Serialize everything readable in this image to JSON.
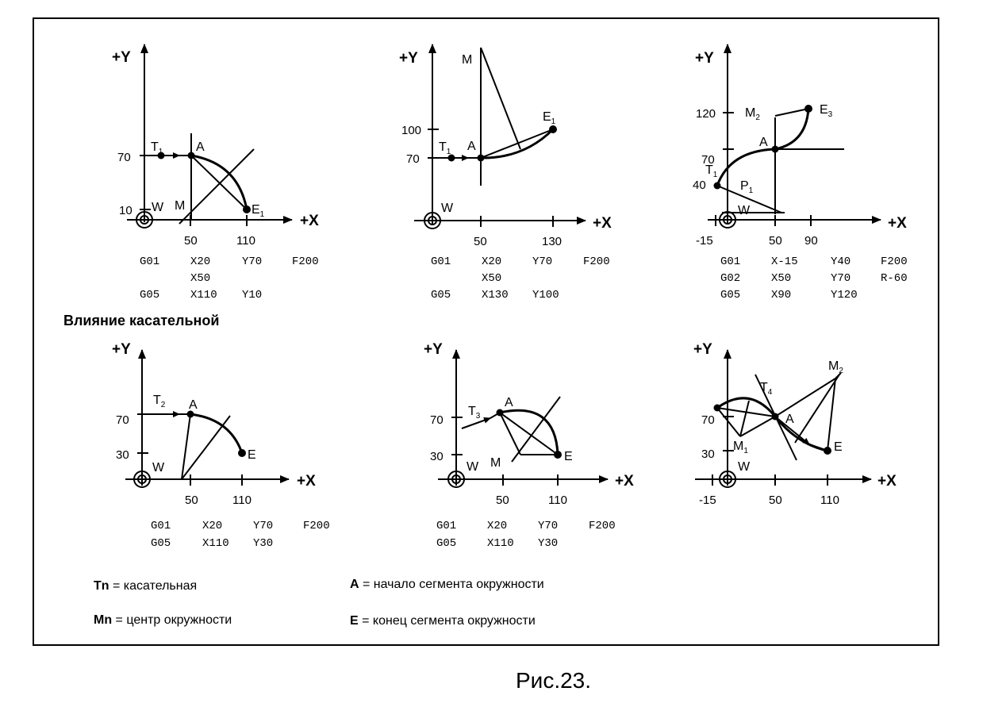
{
  "section_title": "Влияние касательной",
  "caption": "Рис.23.",
  "legend": [
    {
      "key": "Tn",
      "text": " = касательная"
    },
    {
      "key": "A",
      "text": " = начало сегмента окружности"
    },
    {
      "key": "Mn",
      "text": " = центр окружности"
    },
    {
      "key": "E",
      "text": " = конец сегмента окружности"
    }
  ],
  "axes": {
    "x": "+X",
    "y": "+Y",
    "origin": "W"
  },
  "panels": [
    {
      "id": "p1",
      "x_ticks": [
        "50",
        "110"
      ],
      "y_ticks": [
        "70",
        "10"
      ],
      "points": {
        "T": "T",
        "T_sub": "1",
        "A": "A",
        "M": "M",
        "E": "E",
        "E_sub": "1"
      },
      "code": [
        [
          "G01",
          "X20",
          "Y70",
          "F200"
        ],
        [
          "",
          "X50",
          "",
          ""
        ],
        [
          "G05",
          "X110",
          "Y10",
          ""
        ]
      ]
    },
    {
      "id": "p2",
      "x_ticks": [
        "50",
        "130"
      ],
      "y_ticks": [
        "100",
        "70"
      ],
      "points": {
        "T": "T",
        "T_sub": "1",
        "A": "A",
        "M": "M",
        "E": "E",
        "E_sub": "1"
      },
      "code": [
        [
          "G01",
          "X20",
          "Y70",
          "F200"
        ],
        [
          "",
          "X50",
          "",
          ""
        ],
        [
          "G05",
          "X130",
          "Y100",
          ""
        ]
      ]
    },
    {
      "id": "p3",
      "x_ticks": [
        "-15",
        "50",
        "90"
      ],
      "y_ticks": [
        "120",
        "70",
        "40"
      ],
      "points": {
        "T": "T",
        "T_sub": "1",
        "A": "A",
        "M": "M",
        "M_sub": "2",
        "E": "E",
        "E_sub": "3",
        "P": "P",
        "P_sub": "1"
      },
      "code": [
        [
          "G01",
          "X-15",
          "Y40",
          "F200"
        ],
        [
          "G02",
          "X50",
          "Y70",
          "R-60"
        ],
        [
          "G05",
          "X90",
          "Y120",
          ""
        ]
      ]
    },
    {
      "id": "p4",
      "x_ticks": [
        "50",
        "110"
      ],
      "y_ticks": [
        "70",
        "30"
      ],
      "points": {
        "T": "T",
        "T_sub": "2",
        "A": "A",
        "E": "E"
      },
      "code": [
        [
          "G01",
          "X20",
          "Y70",
          "F200"
        ],
        [
          "G05",
          "X110",
          "Y30",
          ""
        ]
      ]
    },
    {
      "id": "p5",
      "x_ticks": [
        "50",
        "110"
      ],
      "y_ticks": [
        "70",
        "30"
      ],
      "points": {
        "T": "T",
        "T_sub": "3",
        "A": "A",
        "M": "M",
        "E": "E"
      },
      "code": [
        [
          "G01",
          "X20",
          "Y70",
          "F200"
        ],
        [
          "G05",
          "X110",
          "Y30",
          ""
        ]
      ]
    },
    {
      "id": "p6",
      "x_ticks": [
        "-15",
        "50",
        "110"
      ],
      "y_ticks": [
        "70",
        "30"
      ],
      "points": {
        "T": "T",
        "T_sub": "4",
        "A": "A",
        "M": "M",
        "M1_sub": "1",
        "M2_sub": "2",
        "E": "E"
      },
      "code": []
    }
  ]
}
